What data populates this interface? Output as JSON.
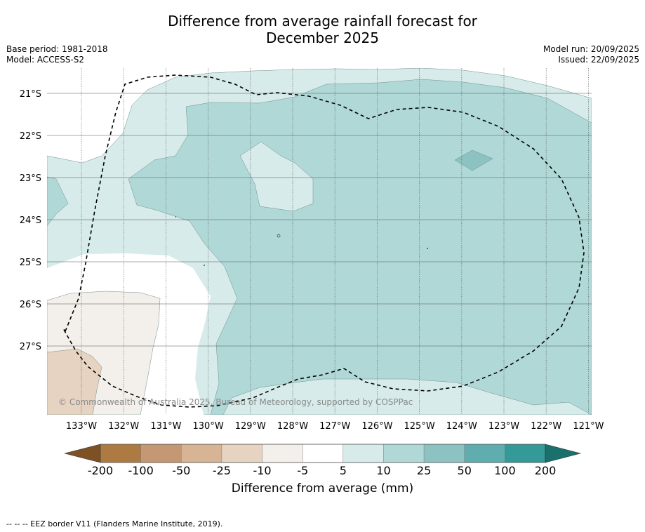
{
  "title_line1": "Difference from average rainfall forecast for",
  "title_line2": "December 2025",
  "base_period": "Base period: 1981-2018",
  "model": "Model: ACCESS-S2",
  "model_run": "Model run: 20/09/2025",
  "issued": "Issued: 22/09/2025",
  "lat_labels": [
    "21°S",
    "22°S",
    "23°S",
    "24°S",
    "25°S",
    "26°S",
    "27°S"
  ],
  "lon_labels": [
    "133°W",
    "132°W",
    "131°W",
    "130°W",
    "129°W",
    "128°W",
    "127°W",
    "126°W",
    "125°W",
    "124°W",
    "123°W",
    "122°W",
    "121°W"
  ],
  "copyright": "© Commonwealth of Australia 2025, Bureau of Meteorology, supported by COSPPac",
  "colorbar": {
    "ticks": [
      "-200",
      "-100",
      "-50",
      "-25",
      "-10",
      "-5",
      "5",
      "10",
      "25",
      "50",
      "100",
      "200"
    ],
    "colors": [
      "#7d5124",
      "#ad7a42",
      "#c39872",
      "#d6b494",
      "#e6d3c1",
      "#f3efea",
      "#ffffff",
      "#d6ebea",
      "#b0d8d7",
      "#8cc3c2",
      "#5fadae",
      "#349a98",
      "#19706c"
    ],
    "label": "Difference from average (mm)"
  },
  "footnote": "--  --  -- EEZ border V11 (Flanders Marine Institute, 2019).",
  "map_colors": {
    "c_5_10": "#d6ebea",
    "c_10_25": "#b0d8d7",
    "c_25_50": "#8cc3c2",
    "c_m5_m10": "#f3efea",
    "c_m10_m25": "#e6d3c1"
  }
}
